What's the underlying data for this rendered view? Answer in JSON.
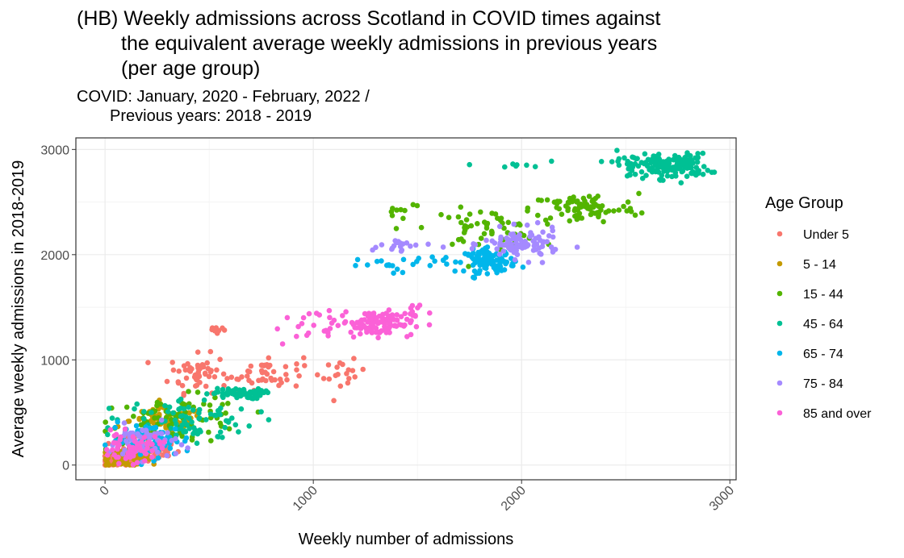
{
  "chart_data": {
    "type": "scatter",
    "title_lines": [
      "(HB) Weekly admissions across Scotland in COVID times against",
      "the equivalent average weekly admissions in previous years",
      "(per age group)"
    ],
    "subtitle_lines": [
      "COVID: January, 2020 - February, 2022 /",
      "Previous years: 2018 - 2019"
    ],
    "xlabel": "Weekly number of admissions",
    "ylabel": "Average weekly admissions in 2018-2019",
    "xlim": [
      -140,
      3030
    ],
    "ylim": [
      -140,
      3110
    ],
    "x_ticks": [
      {
        "value": 0,
        "label": "0"
      },
      {
        "value": 1000,
        "label": "1000"
      },
      {
        "value": 2000,
        "label": "2000"
      },
      {
        "value": 3000,
        "label": "3000"
      }
    ],
    "y_ticks": [
      {
        "value": 0,
        "label": "0"
      },
      {
        "value": 1000,
        "label": "1000"
      },
      {
        "value": 2000,
        "label": "2000"
      },
      {
        "value": 3000,
        "label": "3000"
      }
    ],
    "grid": true,
    "legend_title": "Age Group",
    "legend_position": "right",
    "series": [
      {
        "name": "Under 5",
        "color": "#F8766D",
        "clusters": [
          {
            "cx": 60,
            "cy": 40,
            "sx": 50,
            "sy": 30,
            "n": 90
          },
          {
            "cx": 200,
            "cy": 140,
            "sx": 80,
            "sy": 60,
            "n": 60
          },
          {
            "cx": 450,
            "cy": 870,
            "sx": 70,
            "sy": 90,
            "n": 55
          },
          {
            "cx": 770,
            "cy": 880,
            "sx": 90,
            "sy": 80,
            "n": 45
          },
          {
            "cx": 1150,
            "cy": 850,
            "sx": 50,
            "sy": 70,
            "n": 18
          },
          {
            "cx": 540,
            "cy": 1290,
            "sx": 25,
            "sy": 30,
            "n": 8
          }
        ]
      },
      {
        "name": "5 - 14",
        "color": "#C49A00",
        "clusters": [
          {
            "cx": 100,
            "cy": 70,
            "sx": 60,
            "sy": 40,
            "n": 80
          },
          {
            "cx": 300,
            "cy": 420,
            "sx": 90,
            "sy": 60,
            "n": 70
          }
        ]
      },
      {
        "name": "15 - 44",
        "color": "#53B400",
        "clusters": [
          {
            "cx": 350,
            "cy": 430,
            "sx": 160,
            "sy": 110,
            "n": 90
          },
          {
            "cx": 1820,
            "cy": 2250,
            "sx": 130,
            "sy": 90,
            "n": 55
          },
          {
            "cx": 2300,
            "cy": 2440,
            "sx": 130,
            "sy": 70,
            "n": 85
          },
          {
            "cx": 1410,
            "cy": 2420,
            "sx": 60,
            "sy": 60,
            "n": 10
          }
        ]
      },
      {
        "name": "45 - 64",
        "color": "#00C094",
        "clusters": [
          {
            "cx": 380,
            "cy": 420,
            "sx": 170,
            "sy": 110,
            "n": 90
          },
          {
            "cx": 640,
            "cy": 680,
            "sx": 60,
            "sy": 25,
            "n": 60
          },
          {
            "cx": 2720,
            "cy": 2840,
            "sx": 90,
            "sy": 60,
            "n": 140
          },
          {
            "cx": 2500,
            "cy": 2860,
            "sx": 60,
            "sy": 60,
            "n": 20
          },
          {
            "cx": 1960,
            "cy": 2840,
            "sx": 70,
            "sy": 40,
            "n": 8
          }
        ]
      },
      {
        "name": "65 - 74",
        "color": "#00B6EB",
        "clusters": [
          {
            "cx": 220,
            "cy": 230,
            "sx": 100,
            "sy": 80,
            "n": 70
          },
          {
            "cx": 1850,
            "cy": 1940,
            "sx": 60,
            "sy": 55,
            "n": 100
          },
          {
            "cx": 1400,
            "cy": 1920,
            "sx": 150,
            "sy": 40,
            "n": 25
          }
        ]
      },
      {
        "name": "75 - 84",
        "color": "#A58AFF",
        "clusters": [
          {
            "cx": 180,
            "cy": 220,
            "sx": 80,
            "sy": 80,
            "n": 60
          },
          {
            "cx": 2000,
            "cy": 2100,
            "sx": 90,
            "sy": 70,
            "n": 95
          },
          {
            "cx": 1420,
            "cy": 2080,
            "sx": 90,
            "sy": 40,
            "n": 20
          }
        ]
      },
      {
        "name": "85 and over",
        "color": "#FB61D7",
        "clusters": [
          {
            "cx": 130,
            "cy": 160,
            "sx": 70,
            "sy": 70,
            "n": 55
          },
          {
            "cx": 1300,
            "cy": 1350,
            "sx": 90,
            "sy": 60,
            "n": 110
          },
          {
            "cx": 970,
            "cy": 1300,
            "sx": 80,
            "sy": 80,
            "n": 20
          },
          {
            "cx": 1480,
            "cy": 1470,
            "sx": 30,
            "sy": 60,
            "n": 8
          }
        ]
      }
    ]
  }
}
